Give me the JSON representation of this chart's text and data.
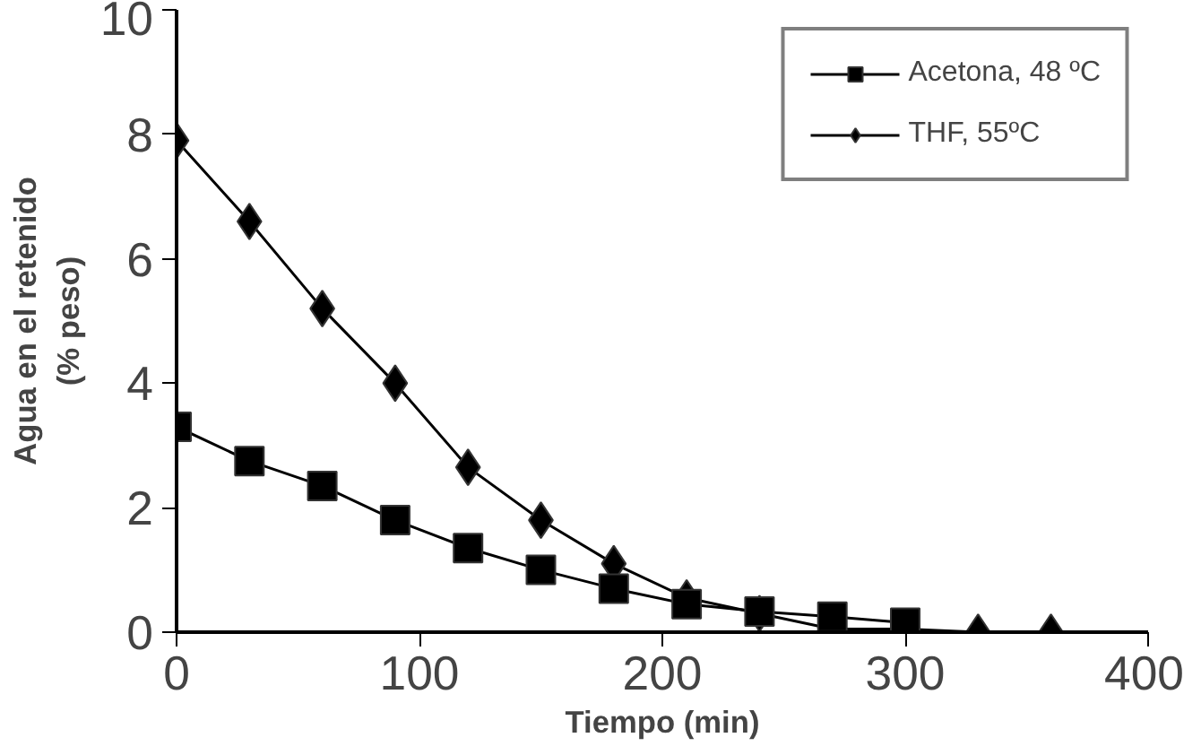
{
  "chart_data": {
    "type": "line",
    "xlabel": "Tiempo (min)",
    "ylabel": "Agua en el retenido\n(% peso)",
    "xlim": [
      0,
      400
    ],
    "xticks": [
      0,
      100,
      200,
      300,
      400
    ],
    "ylim": [
      0,
      10
    ],
    "yticks": [
      0,
      2,
      4,
      6,
      8,
      10
    ],
    "grid": false,
    "legend": "top right",
    "series": [
      {
        "name": "Acetona, 48 ºC",
        "color": "#000000",
        "marker": "square",
        "x": [
          0,
          30,
          60,
          90,
          120,
          150,
          180,
          210,
          240,
          270,
          300
        ],
        "values": [
          3.3,
          2.75,
          2.35,
          1.8,
          1.35,
          1.0,
          0.7,
          0.45,
          0.33,
          0.25,
          0.15
        ]
      },
      {
        "name": "THF, 55ºC",
        "color": "#000000",
        "marker": "diamond",
        "x": [
          0,
          30,
          60,
          90,
          120,
          150,
          180,
          210,
          240,
          270,
          300,
          330,
          360
        ],
        "values": [
          7.9,
          6.6,
          5.2,
          4.0,
          2.65,
          1.8,
          1.1,
          0.55,
          0.3,
          0.05,
          0.05,
          0.0,
          0.0
        ]
      }
    ]
  }
}
